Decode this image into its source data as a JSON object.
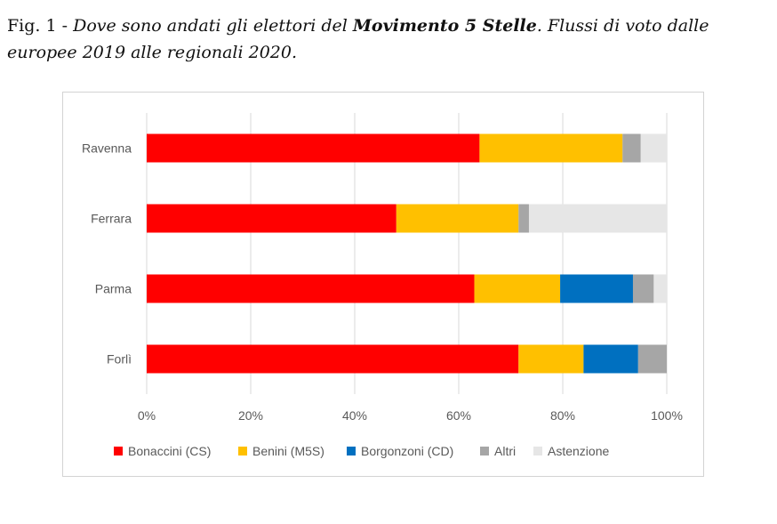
{
  "caption": {
    "prefix": "Fig. 1 - ",
    "italic_part": "Dove sono andati gli elettori del ",
    "bold_part": "Movimento 5 Stelle",
    "rest": ". Flussi di voto dalle europee 2019 alle regionali 2020."
  },
  "chart_data": {
    "type": "bar",
    "orientation": "horizontal",
    "stacked": "percent",
    "categories": [
      "Ravenna",
      "Ferrara",
      "Parma",
      "Forlì"
    ],
    "series": [
      {
        "name": "Bonaccini (CS)",
        "color": "#ff0000",
        "values": [
          64,
          48,
          63,
          71.5
        ]
      },
      {
        "name": "Benini (M5S)",
        "color": "#ffc000",
        "values": [
          27.5,
          23.5,
          16.5,
          12.5
        ]
      },
      {
        "name": "Borgonzoni (CD)",
        "color": "#0070c0",
        "values": [
          0,
          0,
          14,
          10.5
        ]
      },
      {
        "name": "Altri",
        "color": "#a6a6a6",
        "values": [
          3.5,
          2,
          4,
          5.5
        ]
      },
      {
        "name": "Astenzione",
        "color": "#e6e6e6",
        "values": [
          5,
          26.5,
          2.5,
          0
        ]
      }
    ],
    "xlim": [
      0,
      100
    ],
    "xticks": [
      "0%",
      "20%",
      "40%",
      "60%",
      "80%",
      "100%"
    ],
    "grid": "vertical",
    "legend": "bottom"
  }
}
